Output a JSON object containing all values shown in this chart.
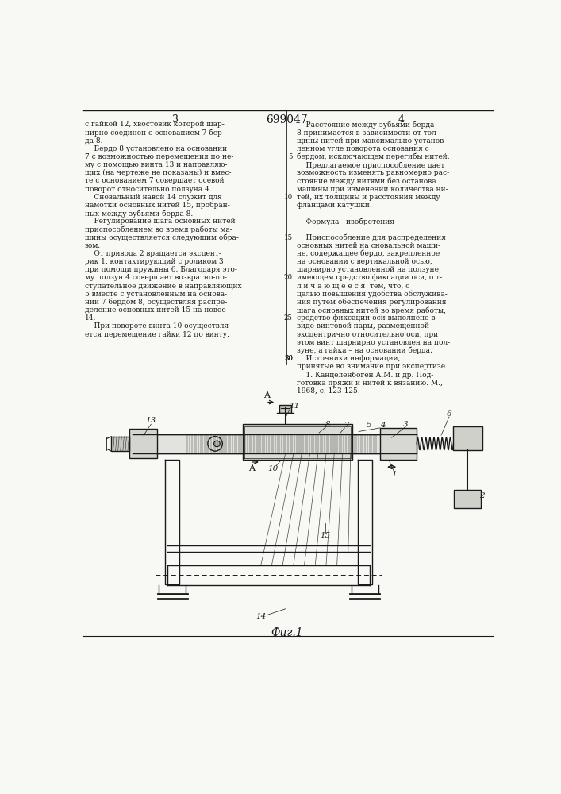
{
  "page_numbers": [
    "3",
    "699047",
    "4"
  ],
  "bg_color": "#f8f8f5",
  "text_color": "#1a1a1a",
  "line_color": "#1a1a1a",
  "left_col_text": [
    "с гайкой 12, хвостовик которой шар-",
    "нирно соединен с основанием 7 бер-",
    "да 8.",
    "    Бердо 8 установлено на основании",
    "7 с возможностью перемещения по не-",
    "му с помощью винта 13 и направляю-",
    "щих (на чертеже не показаны) и вмес-",
    "те с основанием 7 совершает осевой",
    "поворот относительно ползуна 4.",
    "    Сновальный навой 14 служит для",
    "намотки основных нитей 15, пробран-",
    "ных между зубьями берда 8.",
    "    Регулирование шага основных нитей",
    "приспособлением во время работы ма-",
    "шины осуществляется следующим обра-",
    "зом.",
    "    От привода 2 вращается эксцент-",
    "рик 1, контактирующий с роликом 3",
    "при помощи пружины 6. Благодаря это-",
    "му ползун 4 совершает возвратно-по-",
    "ступательное движение в направляющих",
    "5 вместе с установленным на основа-",
    "нии 7 бердом 8, осуществляя распре-",
    "деление основных нитей 15 на новое",
    "14.",
    "    При повороте винта 10 осуществля-",
    "ется перемещение гайки 12 по винту,"
  ],
  "right_col_text": [
    "    Расстояние между зубьями берда",
    "8 принимается в зависимости от тол-",
    "щины нитей при максимально установ-",
    "ленном угле поворота основания с",
    "бердом, исключающем перегибы нитей.",
    "    Предлагаемое приспособление дает",
    "возможность изменять равномерно рас-",
    "стояние между нитями без останова",
    "машины при изменении количества ни-",
    "тей, их толщины и расстояния между",
    "фланцами катушки.",
    "",
    "    Формула   изобретения",
    "",
    "    Приспособление для распределения",
    "основных нитей на сновальной маши-",
    "не, содержащее бердо, закрепленное",
    "на основании с вертикальной осью,",
    "шарнирно установленной на ползуне,",
    "имеющем средство фиксации оси, о т-",
    "л и ч а ю щ е е с я  тем, что, с",
    "целью повышения удобства обслужива-",
    "ния путем обеспечения регулирования",
    "шага основных нитей во время работы,",
    "средство фиксации оси выполнено в",
    "виде винтовой пары, размещенной",
    "эксцентрично относительно оси, при",
    "этом винт шарнирно установлен на пол-",
    "зуне, а гайка – на основании берда."
  ],
  "right_col_text2": [
    "    Источники информации,",
    "принятые во внимание при экспертизе",
    "    1. Канцеленбоген А.М. и др. Под-",
    "готовка пряжи и нитей к вязанию. М.,",
    "1968, с. 123-125."
  ],
  "fig_caption": "Фиг.1"
}
